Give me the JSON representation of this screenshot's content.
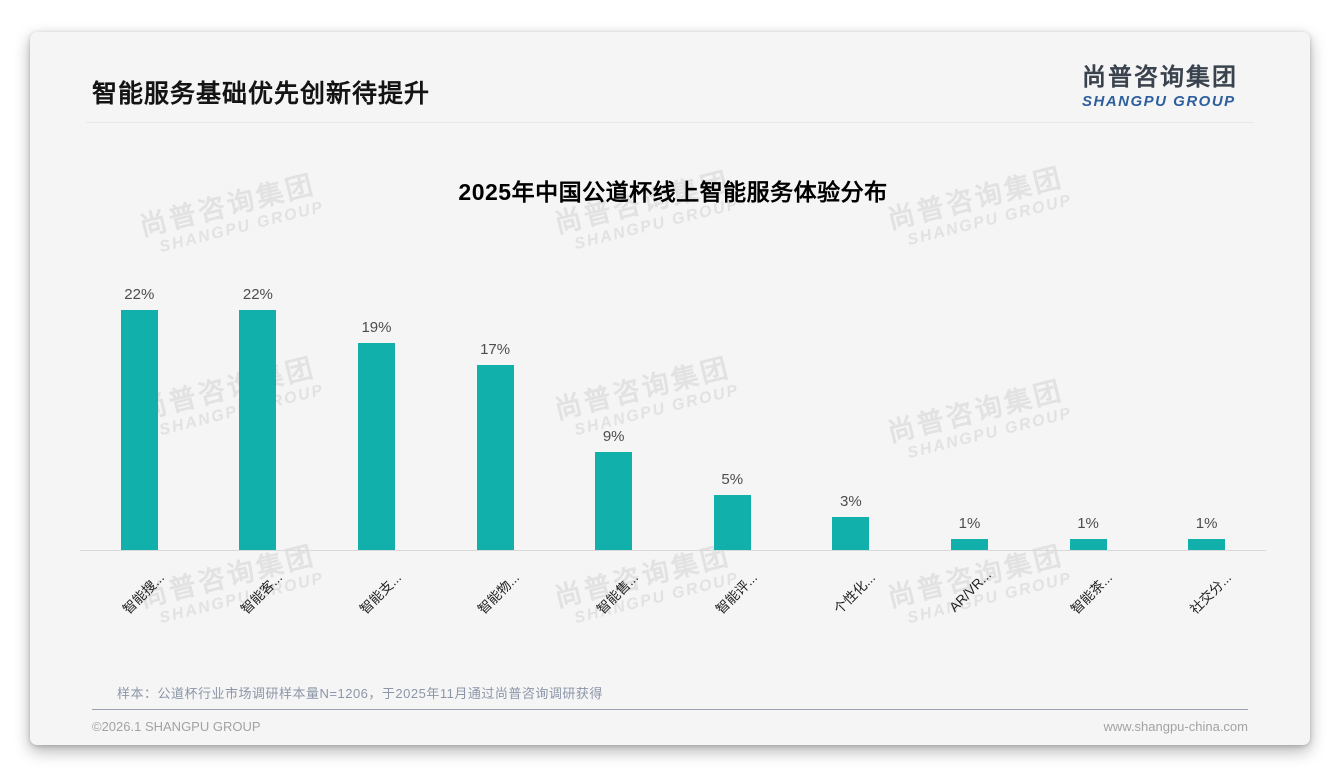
{
  "slide": {
    "title": "智能服务基础优先创新待提升",
    "note": "样本：公道杯行业市场调研样本量N=1206，于2025年11月通过尚普咨询调研获得",
    "copyright": "©2026.1 SHANGPU GROUP",
    "website": "www.shangpu-china.com"
  },
  "logo": {
    "cn": "尚普咨询集团",
    "en": "SHANGPU GROUP"
  },
  "watermark": {
    "cn": "尚普咨询集团",
    "en": "SHANGPU GROUP",
    "count": 9
  },
  "colors": {
    "bar": "#11b0ab",
    "logo_cn_dark": "#39424d",
    "logo_en_blue": "#2d5f9e",
    "axis_line": "#d9d9d9",
    "card_bg": "#f5f5f5"
  },
  "chart_data": {
    "type": "bar",
    "title": "2025年中国公道杯线上智能服务体验分布",
    "categories": [
      "智能搜...",
      "智能客...",
      "智能支...",
      "智能物...",
      "智能售...",
      "智能评...",
      "个性化...",
      "AR/VR...",
      "智能茶...",
      "社交分..."
    ],
    "values": [
      22,
      22,
      19,
      17,
      9,
      5,
      3,
      1,
      1,
      1
    ],
    "value_labels": [
      "22%",
      "22%",
      "19%",
      "17%",
      "9%",
      "5%",
      "3%",
      "1%",
      "1%",
      "1%"
    ],
    "unit": "%",
    "ylim": [
      0,
      22
    ],
    "bar_color": "#11b0ab",
    "grid": false,
    "legend": false,
    "x_label_rotation": 45
  }
}
